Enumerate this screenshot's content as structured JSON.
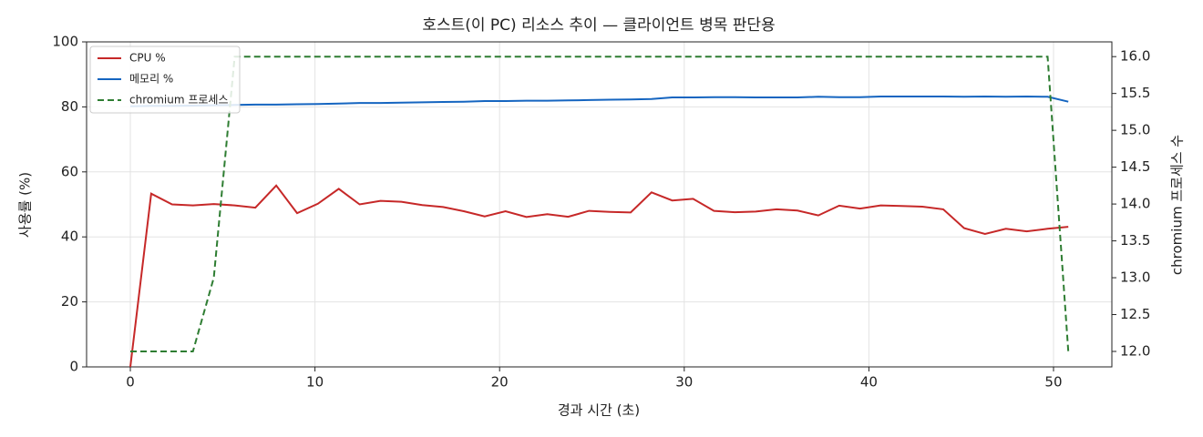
{
  "chart_data": {
    "type": "line",
    "title": "호스트(이 PC) 리소스 추이 — 클라이언트 병목 판단용",
    "x_label": "경과 시간 (초)",
    "y_label": "사용률 (%)",
    "y2_label": "chromium 프로세스 수",
    "x": [
      0,
      1.13,
      2.26,
      3.39,
      4.52,
      5.65,
      6.77,
      7.9,
      9.03,
      10.16,
      11.29,
      12.42,
      13.55,
      14.68,
      15.81,
      16.94,
      18.06,
      19.19,
      20.32,
      21.45,
      22.58,
      23.71,
      24.84,
      25.97,
      27.1,
      28.23,
      29.35,
      30.48,
      31.61,
      32.74,
      33.87,
      35.0,
      36.13,
      37.26,
      38.39,
      39.52,
      40.64,
      41.77,
      42.9,
      44.03,
      45.16,
      46.29,
      47.42,
      48.55,
      49.68,
      50.8
    ],
    "series": [
      {
        "name": "CPU %",
        "color": "#c62828",
        "values": [
          0,
          53.3,
          50,
          49.7,
          50.1,
          49.7,
          49,
          55.8,
          47.3,
          50.2,
          54.8,
          50,
          51.1,
          50.8,
          49.8,
          49.2,
          47.9,
          46.3,
          47.9,
          46.1,
          47,
          46.2,
          48,
          47.7,
          47.5,
          53.7,
          51.2,
          51.7,
          48,
          47.6,
          47.8,
          48.5,
          48.1,
          46.6,
          49.6,
          48.7,
          49.7,
          49.5,
          49.3,
          48.5,
          42.7,
          40.9,
          42.5,
          41.7,
          42.5,
          43.1
        ]
      },
      {
        "name": "메모리 %",
        "color": "#1565c0",
        "values": [
          80.2,
          80.3,
          80.3,
          80.4,
          80.5,
          80.6,
          80.7,
          80.7,
          80.8,
          80.9,
          81.0,
          81.2,
          81.2,
          81.3,
          81.4,
          81.5,
          81.6,
          81.8,
          81.8,
          81.9,
          81.9,
          82.0,
          82.1,
          82.2,
          82.3,
          82.4,
          82.9,
          82.9,
          83.0,
          83.0,
          82.9,
          82.9,
          82.9,
          83.1,
          83.0,
          83.0,
          83.2,
          83.2,
          83.2,
          83.2,
          83.1,
          83.2,
          83.1,
          83.2,
          83.1,
          81.6
        ]
      },
      {
        "name": "chromium 프로세스",
        "color": "#2e7d32",
        "dashed": true,
        "axis": "y2",
        "values": [
          12,
          12,
          12,
          12,
          13,
          16,
          16,
          16,
          16,
          16,
          16,
          16,
          16,
          16,
          16,
          16,
          16,
          16,
          16,
          16,
          16,
          16,
          16,
          16,
          16,
          16,
          16,
          16,
          16,
          16,
          16,
          16,
          16,
          16,
          16,
          16,
          16,
          16,
          16,
          16,
          16,
          16,
          16,
          16,
          16,
          12
        ]
      }
    ],
    "xlim": [
      -2.37,
      53.16
    ],
    "xticks": [
      0,
      10,
      20,
      30,
      40,
      50
    ],
    "ylim": [
      0,
      100
    ],
    "yticks": [
      0,
      20,
      40,
      60,
      80,
      100
    ],
    "y2lim": [
      11.79,
      16.2
    ],
    "y2ticks": [
      {
        "value": 12,
        "label": "12.0"
      },
      {
        "value": 12.5,
        "label": "12.5"
      },
      {
        "value": 13,
        "label": "13.0"
      },
      {
        "value": 13.5,
        "label": "13.5"
      },
      {
        "value": 14,
        "label": "14.0"
      },
      {
        "value": 14.5,
        "label": "14.5"
      },
      {
        "value": 15,
        "label": "15.0"
      },
      {
        "value": 15.5,
        "label": "15.5"
      },
      {
        "value": 16,
        "label": "16.0"
      }
    ],
    "grid": true,
    "legend": "upper-left"
  }
}
